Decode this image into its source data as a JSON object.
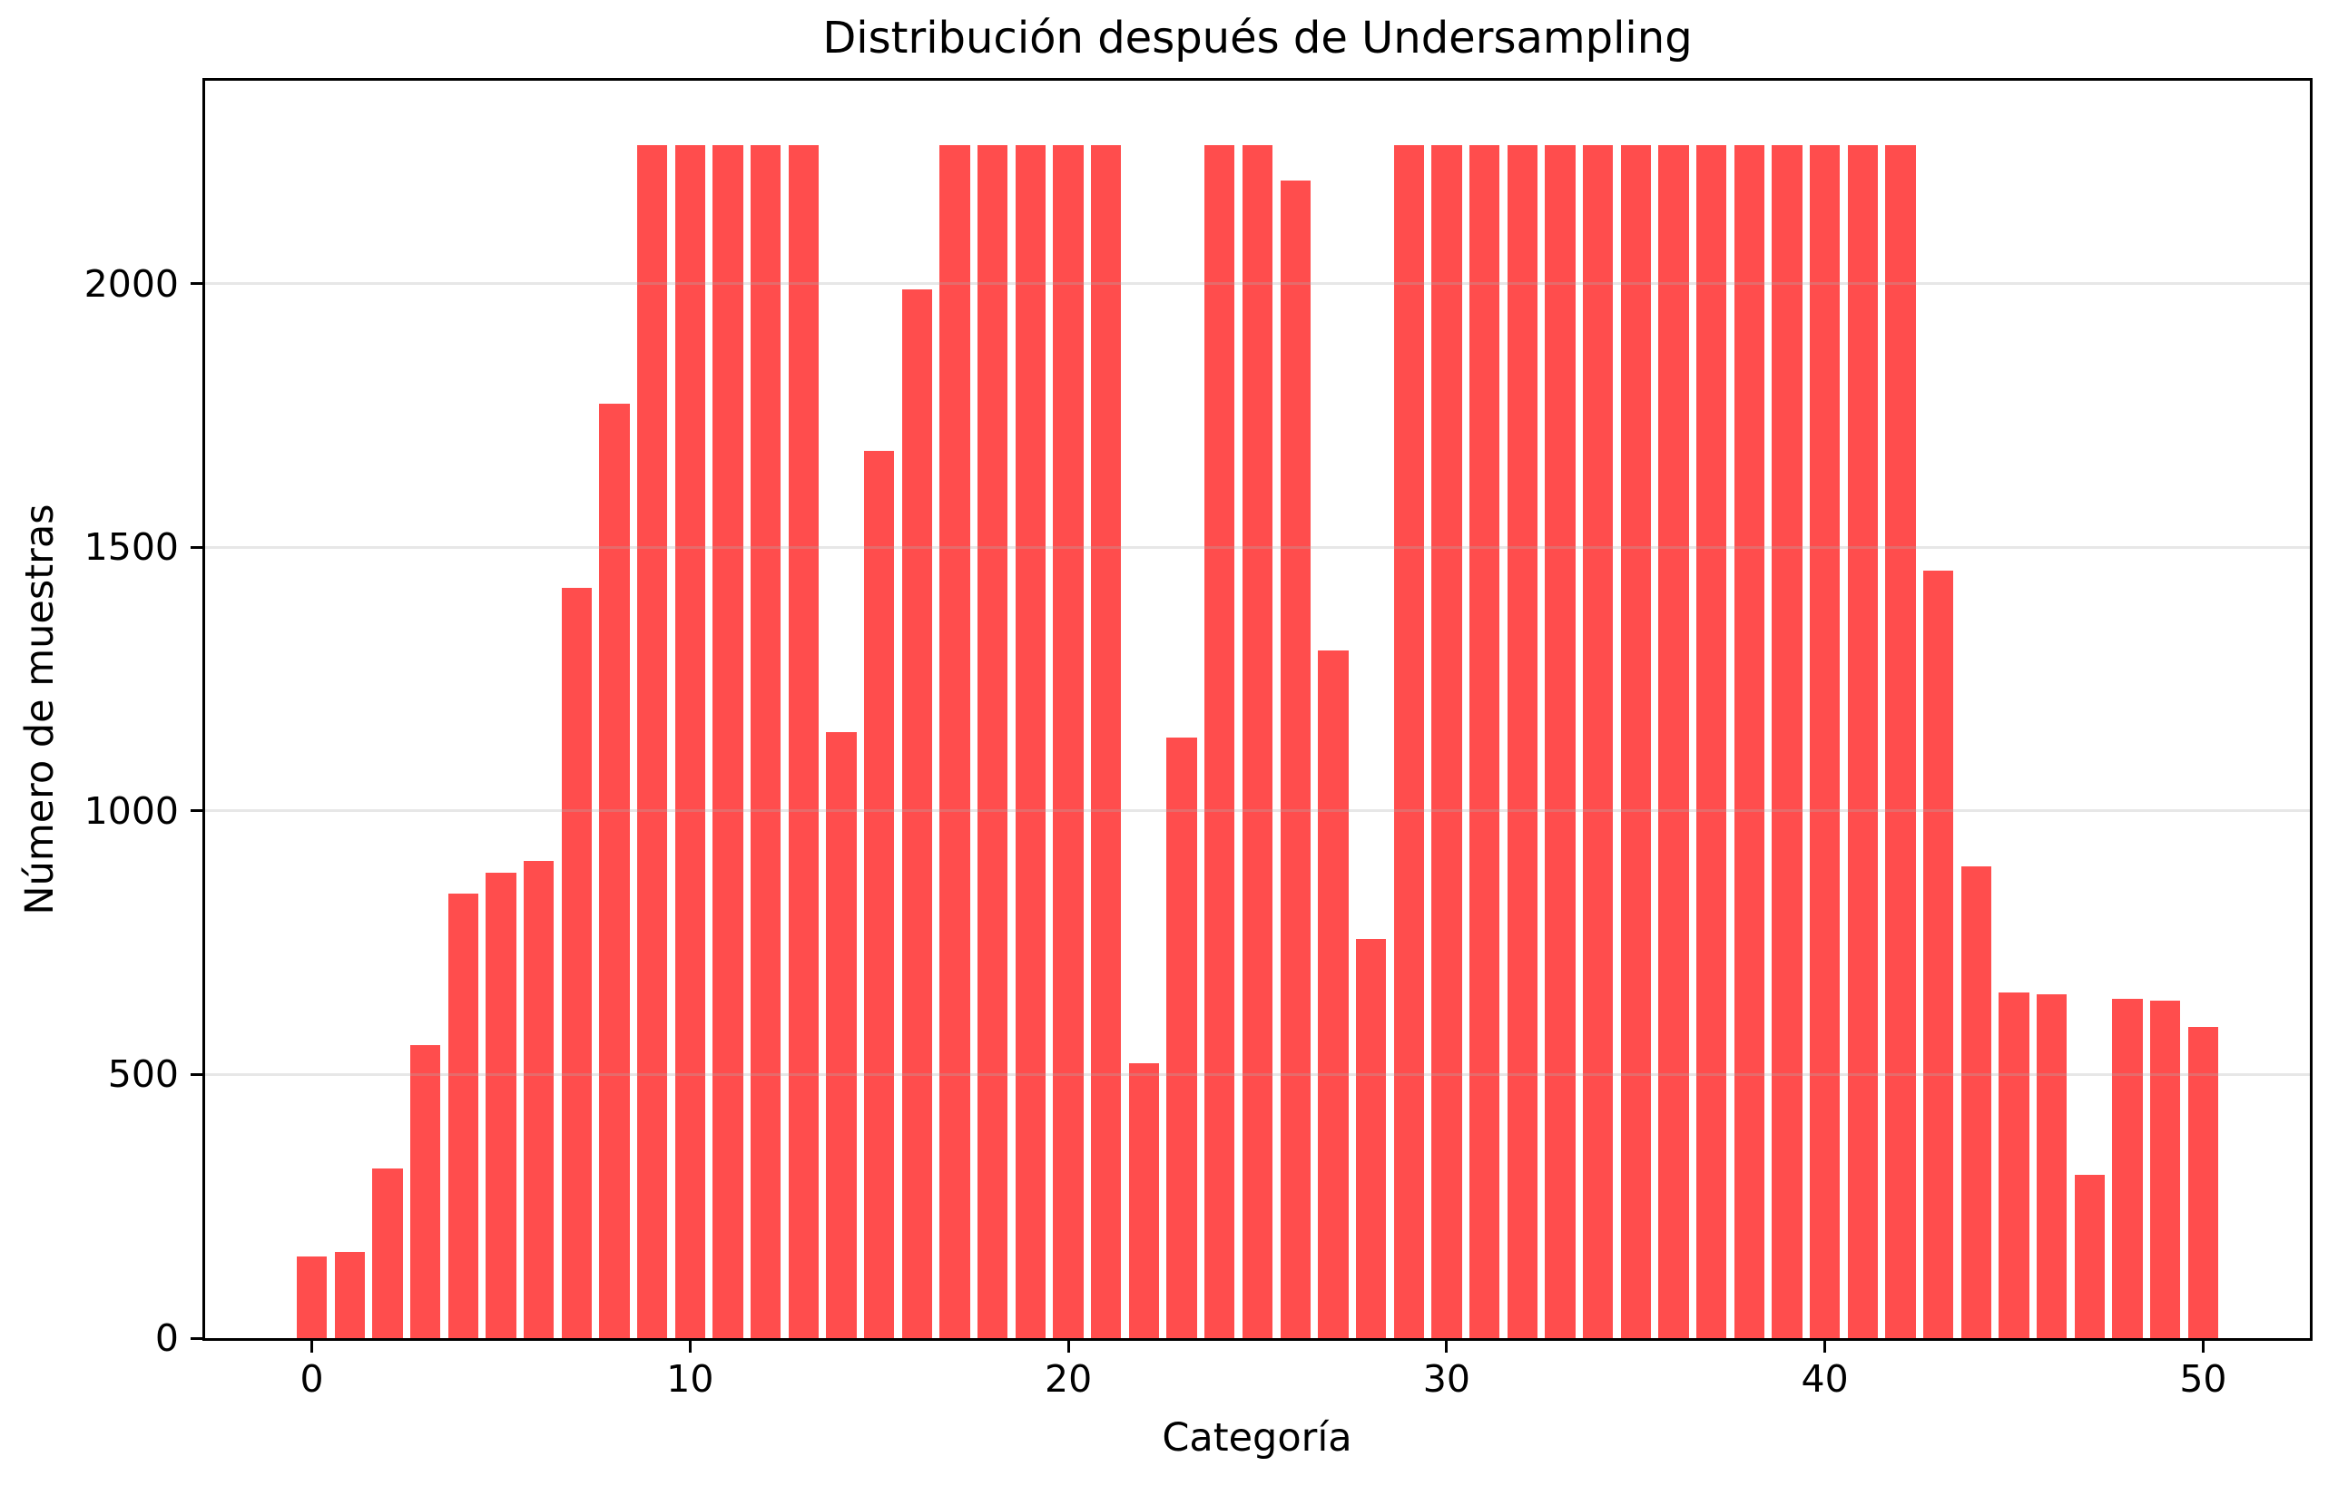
{
  "chart_data": {
    "type": "bar",
    "title": "Distribución después de Undersampling",
    "xlabel": "Categoría",
    "ylabel": "Número de muestras",
    "categories": [
      0,
      1,
      2,
      3,
      4,
      5,
      6,
      7,
      8,
      9,
      10,
      11,
      12,
      13,
      14,
      15,
      16,
      17,
      18,
      19,
      20,
      21,
      22,
      23,
      24,
      25,
      26,
      27,
      28,
      29,
      30,
      31,
      32,
      33,
      34,
      35,
      36,
      37,
      38,
      39,
      40,
      41,
      42,
      43,
      44,
      45,
      46,
      47,
      48,
      49,
      50
    ],
    "values": [
      155,
      164,
      321,
      555,
      843,
      883,
      906,
      1423,
      1772,
      2262,
      2262,
      2262,
      2262,
      2262,
      1150,
      1683,
      1990,
      2262,
      2262,
      2262,
      2262,
      2262,
      522,
      1140,
      2262,
      2262,
      2196,
      1305,
      757,
      2262,
      2262,
      2262,
      2262,
      2262,
      2262,
      2262,
      2262,
      2262,
      2262,
      2262,
      2262,
      2262,
      2262,
      1456,
      894,
      656,
      652,
      309,
      644,
      640,
      591
    ],
    "ylim": [
      0,
      2385
    ],
    "yticks": [
      0,
      500,
      1000,
      1500,
      2000
    ],
    "xticks": [
      0,
      10,
      20,
      30,
      40,
      50
    ],
    "grid": "horizontal",
    "bar_color": "#FF4D4D",
    "grid_color_rgba": "rgba(176,176,176,0.3)",
    "axis_color": "#000000",
    "background_color": "#FFFFFF"
  }
}
